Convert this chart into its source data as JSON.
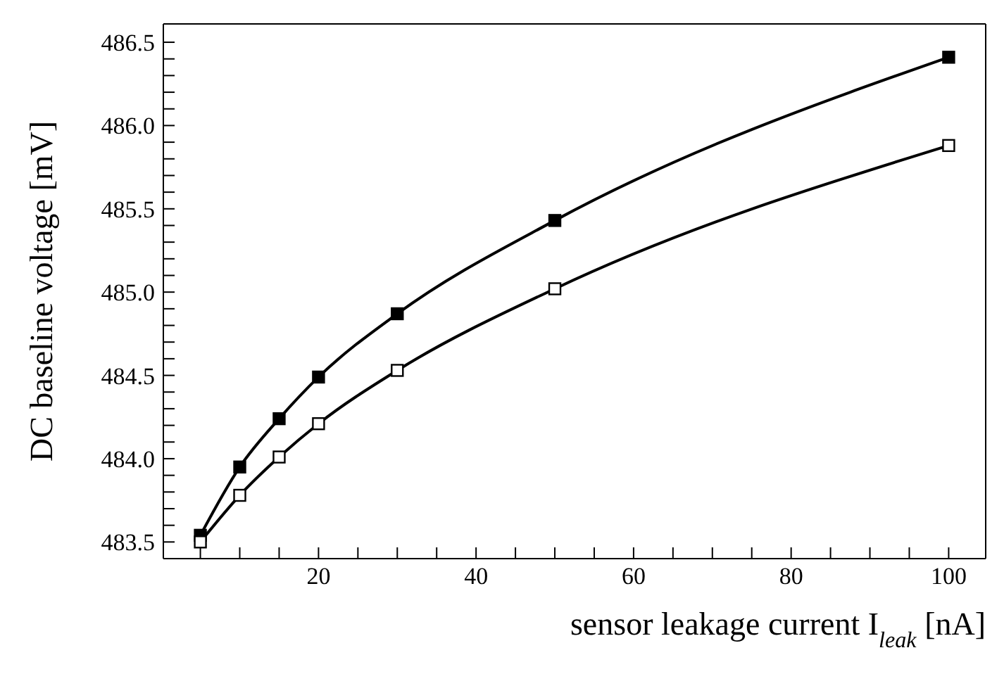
{
  "chart_data": {
    "type": "line",
    "xlabel": "sensor leakage current  I$_{leak}$  [nA]",
    "ylabel": "DC baseline voltage [mV]",
    "x": [
      5,
      10,
      15,
      20,
      30,
      50,
      100
    ],
    "series": [
      {
        "color": "#000000",
        "values": [
          483.54,
          483.95,
          484.24,
          484.49,
          484.87,
          485.43,
          486.41
        ]
      },
      {
        "color": "#000000",
        "values": [
          483.5,
          483.78,
          484.01,
          484.21,
          484.53,
          485.02,
          485.88
        ]
      }
    ],
    "marker": "square",
    "line_style": "solid",
    "grid": false,
    "legend": false,
    "xlim": [
      0.3,
      104.7
    ],
    "ylim": [
      483.4,
      486.61
    ],
    "xticks": [
      {
        "value": 5,
        "label": null
      },
      {
        "value": 10,
        "label": null
      },
      {
        "value": 15,
        "label": null
      },
      20,
      {
        "value": 25,
        "label": null
      },
      {
        "value": 30,
        "label": null
      },
      {
        "value": 35,
        "label": null
      },
      40,
      {
        "value": 45,
        "label": null
      },
      {
        "value": 50,
        "label": null
      },
      {
        "value": 55,
        "label": null
      },
      60,
      {
        "value": 65,
        "label": null
      },
      {
        "value": 70,
        "label": null
      },
      {
        "value": 75,
        "label": null
      },
      80,
      {
        "value": 85,
        "label": null
      },
      {
        "value": 90,
        "label": null
      },
      {
        "value": 95,
        "label": null
      },
      100
    ],
    "yticks": [
      {
        "value": 483.5,
        "label": "483.5"
      },
      {
        "value": 483.6,
        "label": null
      },
      {
        "value": 483.7,
        "label": null
      },
      {
        "value": 483.8,
        "label": null
      },
      {
        "value": 483.9,
        "label": null
      },
      {
        "value": 484.0,
        "label": "484.0"
      },
      {
        "value": 484.1,
        "label": null
      },
      {
        "value": 484.2,
        "label": null
      },
      {
        "value": 484.3,
        "label": null
      },
      {
        "value": 484.4,
        "label": null
      },
      {
        "value": 484.5,
        "label": "484.5"
      },
      {
        "value": 484.6,
        "label": null
      },
      {
        "value": 484.7,
        "label": null
      },
      {
        "value": 484.8,
        "label": null
      },
      {
        "value": 484.9,
        "label": null
      },
      {
        "value": 485.0,
        "label": "485.0"
      },
      {
        "value": 485.1,
        "label": null
      },
      {
        "value": 485.2,
        "label": null
      },
      {
        "value": 485.3,
        "label": null
      },
      {
        "value": 485.4,
        "label": null
      },
      {
        "value": 485.5,
        "label": "485.5"
      },
      {
        "value": 485.6,
        "label": null
      },
      {
        "value": 485.7,
        "label": null
      },
      {
        "value": 485.8,
        "label": null
      },
      {
        "value": 485.9,
        "label": null
      },
      {
        "value": 486.0,
        "label": "486.0"
      },
      {
        "value": 486.1,
        "label": null
      },
      {
        "value": 486.2,
        "label": null
      },
      {
        "value": 486.3,
        "label": null
      },
      {
        "value": 486.4,
        "label": null
      },
      {
        "value": 486.5,
        "label": "486.5"
      }
    ]
  }
}
